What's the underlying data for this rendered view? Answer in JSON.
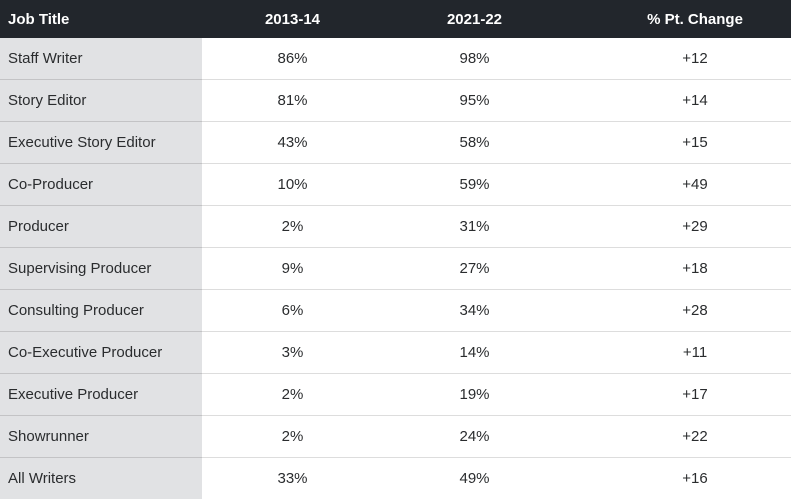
{
  "colors": {
    "header_bg": "#22262c",
    "header_text": "#ffffff",
    "label_column_bg": "#e1e2e4",
    "row_bg": "#ffffff",
    "body_text": "#2a2c2e",
    "row_divider": "rgba(0,0,0,0.135)"
  },
  "chart_data": {
    "type": "table",
    "columns": [
      "Job Title",
      "2013-14",
      "2021-22",
      "% Pt. Change"
    ],
    "rows": [
      {
        "job_title": "Staff Writer",
        "season_2013_14": "86%",
        "season_2021_22": "98%",
        "pt_change": "+12"
      },
      {
        "job_title": "Story Editor",
        "season_2013_14": "81%",
        "season_2021_22": "95%",
        "pt_change": "+14"
      },
      {
        "job_title": "Executive Story Editor",
        "season_2013_14": "43%",
        "season_2021_22": "58%",
        "pt_change": "+15"
      },
      {
        "job_title": "Co-Producer",
        "season_2013_14": "10%",
        "season_2021_22": "59%",
        "pt_change": "+49"
      },
      {
        "job_title": "Producer",
        "season_2013_14": "2%",
        "season_2021_22": "31%",
        "pt_change": "+29"
      },
      {
        "job_title": "Supervising Producer",
        "season_2013_14": "9%",
        "season_2021_22": "27%",
        "pt_change": "+18"
      },
      {
        "job_title": "Consulting Producer",
        "season_2013_14": "6%",
        "season_2021_22": "34%",
        "pt_change": "+28"
      },
      {
        "job_title": "Co-Executive Producer",
        "season_2013_14": "3%",
        "season_2021_22": "14%",
        "pt_change": "+11"
      },
      {
        "job_title": "Executive Producer",
        "season_2013_14": "2%",
        "season_2021_22": "19%",
        "pt_change": "+17"
      },
      {
        "job_title": "Showrunner",
        "season_2013_14": "2%",
        "season_2021_22": "24%",
        "pt_change": "+22"
      },
      {
        "job_title": "All Writers",
        "season_2013_14": "33%",
        "season_2021_22": "49%",
        "pt_change": "+16"
      }
    ]
  }
}
